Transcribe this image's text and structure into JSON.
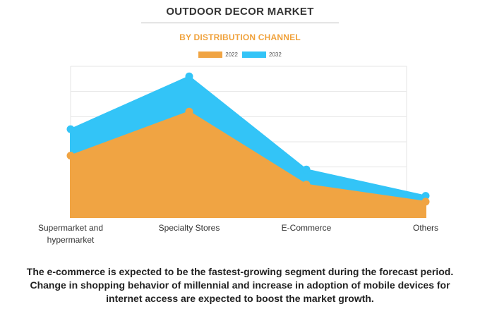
{
  "header": {
    "title": "OUTDOOR DECOR MARKET",
    "subtitle": "BY DISTRIBUTION CHANNEL"
  },
  "colors": {
    "series_2022": "#f0a443",
    "series_2032": "#33c4f7",
    "subtitle": "#f0a23c",
    "grid": "#e6e6e6"
  },
  "chart_data": {
    "type": "area",
    "categories": [
      "Supermarket and hypermarket",
      "Specialty Stores",
      "E-Commerce",
      "Others"
    ],
    "category_lines": [
      [
        "Supermarket and",
        "hypermarket"
      ],
      [
        "Specialty Stores"
      ],
      [
        "E-Commerce"
      ],
      [
        "Others"
      ]
    ],
    "series": [
      {
        "name": "2022",
        "values": [
          2.45,
          4.2,
          1.3,
          0.62
        ]
      },
      {
        "name": "2032",
        "values": [
          3.5,
          5.6,
          1.9,
          0.85
        ]
      }
    ],
    "ylim": [
      0,
      6
    ],
    "grid": true,
    "legend_position": "top-center"
  },
  "caption": {
    "lines": [
      "The e-commerce is expected to be the fastest-growing segment during the forecast period.",
      "Change in shopping behavior of millennial and increase in adoption of mobile devices for",
      "internet access are expected to boost the market growth."
    ]
  }
}
